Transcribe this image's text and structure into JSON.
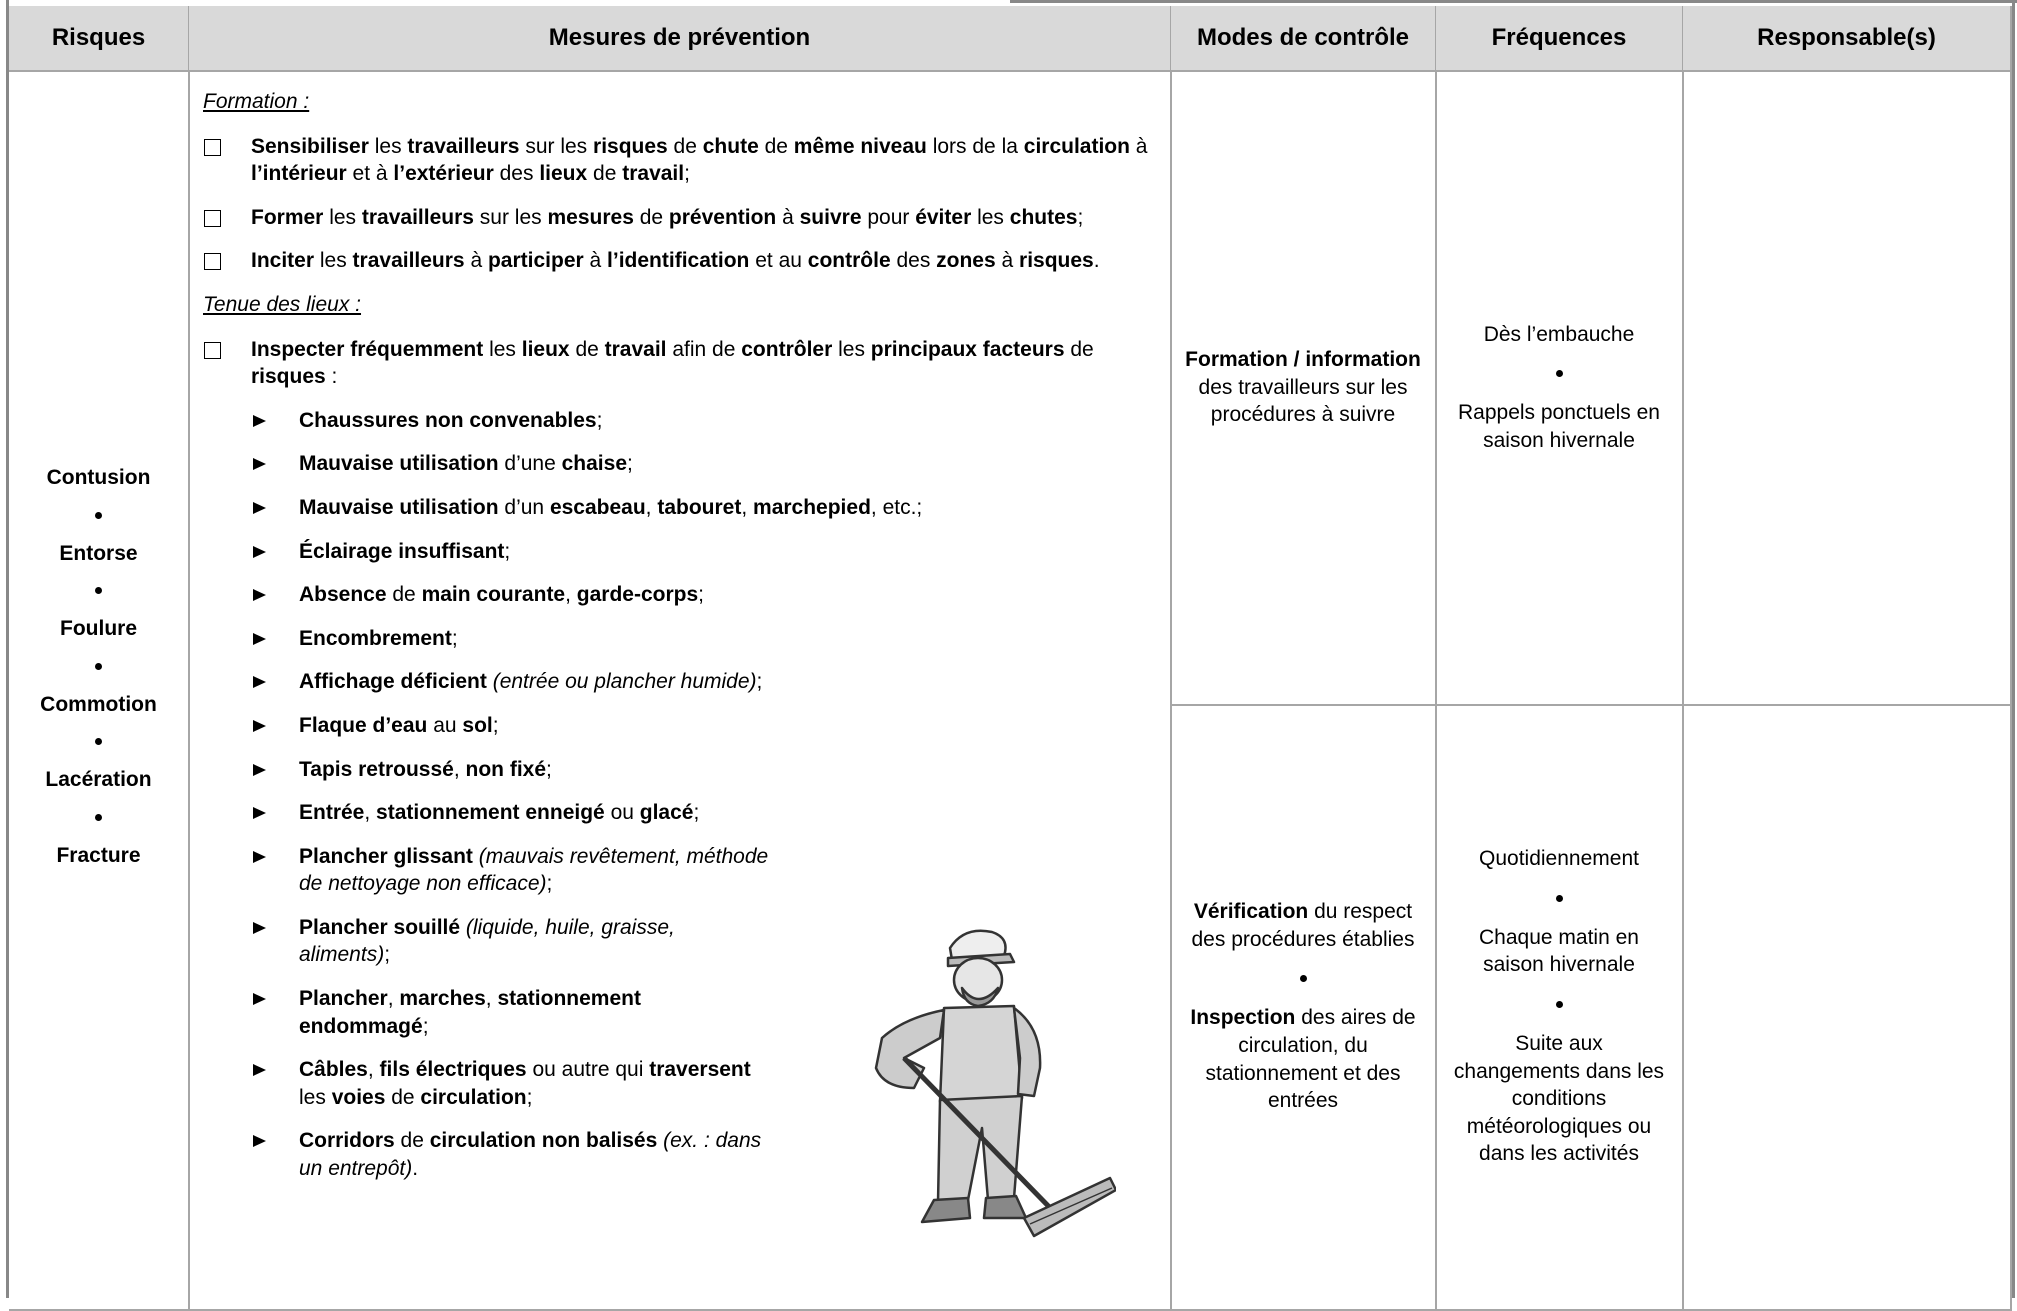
{
  "header": [
    "Risques",
    "Mesures de prévention",
    "Modes de contrôle",
    "Fréquences",
    "Responsable(s)"
  ],
  "risks": [
    "Contusion",
    "Entorse",
    "Foulure",
    "Commotion",
    "Lacération",
    "Fracture"
  ],
  "measures": [
    {
      "heading": "Formation :",
      "items": [
        {
          "runs": [
            {
              "b": "Sensibiliser"
            },
            {
              "t": " les "
            },
            {
              "b": "travailleurs"
            },
            {
              "t": " sur les "
            },
            {
              "b": "risques"
            },
            {
              "t": " de "
            },
            {
              "b": "chute"
            },
            {
              "t": " de "
            },
            {
              "b": "même niveau"
            },
            {
              "t": " lors de la "
            },
            {
              "b": "circulation"
            },
            {
              "t": " à "
            },
            {
              "b": "l’intérieur"
            },
            {
              "t": " et à "
            },
            {
              "b": "l’extérieur"
            },
            {
              "t": " des "
            },
            {
              "b": "lieux"
            },
            {
              "t": " de "
            },
            {
              "b": "travail"
            },
            {
              "t": ";"
            }
          ]
        },
        {
          "runs": [
            {
              "b": "Former"
            },
            {
              "t": " les "
            },
            {
              "b": "travailleurs"
            },
            {
              "t": " sur les "
            },
            {
              "b": "mesures"
            },
            {
              "t": " de "
            },
            {
              "b": "prévention"
            },
            {
              "t": " à "
            },
            {
              "b": "suivre"
            },
            {
              "t": " pour "
            },
            {
              "b": "éviter"
            },
            {
              "t": " les "
            },
            {
              "b": "chutes"
            },
            {
              "t": ";"
            }
          ]
        },
        {
          "runs": [
            {
              "b": "Inciter"
            },
            {
              "t": " les "
            },
            {
              "b": "travailleurs"
            },
            {
              "t": " à "
            },
            {
              "b": "participer"
            },
            {
              "t": " à "
            },
            {
              "b": "l’identification"
            },
            {
              "t": " et au "
            },
            {
              "b": "contrôle"
            },
            {
              "t": " des "
            },
            {
              "b": "zones"
            },
            {
              "t": " à "
            },
            {
              "b": "risques"
            },
            {
              "t": "."
            }
          ]
        }
      ]
    },
    {
      "heading": "Tenue des lieux :",
      "items": [
        {
          "runs": [
            {
              "b": "Inspecter fréquemment"
            },
            {
              "t": " les "
            },
            {
              "b": "lieux"
            },
            {
              "t": " de "
            },
            {
              "b": "travail"
            },
            {
              "t": " afin de "
            },
            {
              "b": "contrôler"
            },
            {
              "t": " les "
            },
            {
              "b": "principaux facteurs"
            },
            {
              "t": " de "
            },
            {
              "b": "risques"
            },
            {
              "t": " :"
            }
          ],
          "sub": [
            [
              {
                "b": "Chaussures non convenables"
              },
              {
                "t": ";"
              }
            ],
            [
              {
                "b": "Mauvaise utilisation"
              },
              {
                "t": " d’une "
              },
              {
                "b": "chaise"
              },
              {
                "t": ";"
              }
            ],
            [
              {
                "b": "Mauvaise utilisation"
              },
              {
                "t": " d’un "
              },
              {
                "b": "escabeau"
              },
              {
                "t": ", "
              },
              {
                "b": "tabouret"
              },
              {
                "t": ", "
              },
              {
                "b": "marchepied"
              },
              {
                "t": ", etc.;"
              }
            ],
            [
              {
                "b": "Éclairage insuffisant"
              },
              {
                "t": ";"
              }
            ],
            [
              {
                "b": "Absence"
              },
              {
                "t": " de "
              },
              {
                "b": "main courante"
              },
              {
                "t": ", "
              },
              {
                "b": "garde-corps"
              },
              {
                "t": ";"
              }
            ],
            [
              {
                "b": "Encombrement"
              },
              {
                "t": ";"
              }
            ],
            [
              {
                "b": "Affichage déficient"
              },
              {
                "i": " (entrée ou plancher humide)"
              },
              {
                "t": ";"
              }
            ],
            [
              {
                "b": "Flaque d’eau"
              },
              {
                "t": " au "
              },
              {
                "b": "sol"
              },
              {
                "t": ";"
              }
            ],
            [
              {
                "b": "Tapis retroussé"
              },
              {
                "t": ", "
              },
              {
                "b": "non fixé"
              },
              {
                "t": ";"
              }
            ],
            [
              {
                "b": "Entrée"
              },
              {
                "t": ", "
              },
              {
                "b": "stationnement enneigé"
              },
              {
                "t": " ou "
              },
              {
                "b": "glacé"
              },
              {
                "t": ";"
              }
            ],
            [
              {
                "b": "Plancher glissant"
              },
              {
                "i": " (mauvais revêtement, méthode de nettoyage non efficace)"
              },
              {
                "t": ";"
              }
            ],
            [
              {
                "b": "Plancher souillé"
              },
              {
                "i": " (liquide, huile, graisse, aliments)"
              },
              {
                "t": ";"
              }
            ],
            [
              {
                "b": "Plancher"
              },
              {
                "t": ", "
              },
              {
                "b": "marches"
              },
              {
                "t": ", "
              },
              {
                "b": "stationnement endommagé"
              },
              {
                "t": ";"
              }
            ],
            [
              {
                "b": "Câbles"
              },
              {
                "t": ", "
              },
              {
                "b": "fils électriques"
              },
              {
                "t": " ou autre qui "
              },
              {
                "b": "traversent"
              },
              {
                "t": " les "
              },
              {
                "b": "voies"
              },
              {
                "t": " de "
              },
              {
                "b": "circulation"
              },
              {
                "t": ";"
              }
            ],
            [
              {
                "b": "Corridors"
              },
              {
                "t": " de "
              },
              {
                "b": "circulation non balisés"
              },
              {
                "i": " (ex. : dans un entrepôt)"
              },
              {
                "t": "."
              }
            ]
          ]
        }
      ]
    }
  ],
  "rows": [
    {
      "control": [
        [
          {
            "b": "Formation / information"
          },
          {
            "t": " des travailleurs sur les procédures à suivre"
          }
        ]
      ],
      "frequency": [
        "Dès l’embauche",
        "Rappels ponctuels en saison hivernale"
      ]
    },
    {
      "control": [
        [
          {
            "b": "Vérification"
          },
          {
            "t": " du respect des procédures établies"
          }
        ],
        [
          {
            "b": "Inspection"
          },
          {
            "t": " des aires de circulation, du stationnement et des entrées"
          }
        ]
      ],
      "frequency": [
        "Quotidiennement",
        "Chaque matin en saison hivernale",
        "Suite aux changements dans les conditions météorologiques ou dans les activités"
      ]
    }
  ]
}
